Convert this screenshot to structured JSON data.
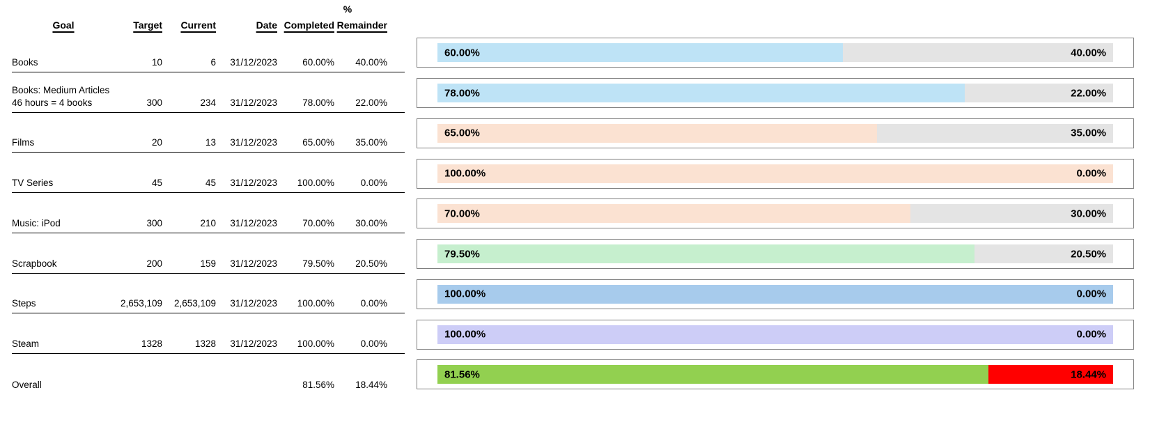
{
  "colors": {
    "light_blue": "#BEE3F6",
    "peach": "#FBE2D2",
    "light_green": "#C6EFCE",
    "medium_blue": "#A7CBEC",
    "lavender": "#CDCDF7",
    "bright_green": "#92D050",
    "red": "#FF0000",
    "remainder_gray": "#E4E4E4",
    "chart_border": "#7F7F7F"
  },
  "table": {
    "headers": {
      "percent_symbol": "%",
      "goal": "Goal",
      "target": "Target",
      "current": "Current",
      "date": "Date",
      "completed": "Completed",
      "remainder": "Remainder"
    }
  },
  "rows": [
    {
      "goal": "Books",
      "goal2": "",
      "target": "10",
      "current": "6",
      "date": "31/12/2023",
      "completed": "60.00%",
      "remainder": "40.00%",
      "completed_pct": 60,
      "fill_color": "#BEE3F6",
      "remainder_color": "#E4E4E4",
      "underline": true
    },
    {
      "goal": "Books: Medium Articles",
      "goal2": "46 hours = 4 books",
      "target": "300",
      "current": "234",
      "date": "31/12/2023",
      "completed": "78.00%",
      "remainder": "22.00%",
      "completed_pct": 78,
      "fill_color": "#BEE3F6",
      "remainder_color": "#E4E4E4",
      "underline": true
    },
    {
      "goal": "Films",
      "goal2": "",
      "target": "20",
      "current": "13",
      "date": "31/12/2023",
      "completed": "65.00%",
      "remainder": "35.00%",
      "completed_pct": 65,
      "fill_color": "#FBE2D2",
      "remainder_color": "#E4E4E4",
      "underline": true
    },
    {
      "goal": "TV Series",
      "goal2": "",
      "target": "45",
      "current": "45",
      "date": "31/12/2023",
      "completed": "100.00%",
      "remainder": "0.00%",
      "completed_pct": 100,
      "fill_color": "#FBE2D2",
      "remainder_color": "#E4E4E4",
      "underline": true
    },
    {
      "goal": "Music: iPod",
      "goal2": "",
      "target": "300",
      "current": "210",
      "date": "31/12/2023",
      "completed": "70.00%",
      "remainder": "30.00%",
      "completed_pct": 70,
      "fill_color": "#FBE2D2",
      "remainder_color": "#E4E4E4",
      "underline": true
    },
    {
      "goal": "Scrapbook",
      "goal2": "",
      "target": "200",
      "current": "159",
      "date": "31/12/2023",
      "completed": "79.50%",
      "remainder": "20.50%",
      "completed_pct": 79.5,
      "fill_color": "#C6EFCE",
      "remainder_color": "#E4E4E4",
      "underline": true
    },
    {
      "goal": "Steps",
      "goal2": "",
      "target": "2,653,109",
      "current": "2,653,109",
      "date": "31/12/2023",
      "completed": "100.00%",
      "remainder": "0.00%",
      "completed_pct": 100,
      "fill_color": "#A7CBEC",
      "remainder_color": "#E4E4E4",
      "underline": true
    },
    {
      "goal": "Steam",
      "goal2": "",
      "target": "1328",
      "current": "1328",
      "date": "31/12/2023",
      "completed": "100.00%",
      "remainder": "0.00%",
      "completed_pct": 100,
      "fill_color": "#CDCDF7",
      "remainder_color": "#E4E4E4",
      "underline": true
    },
    {
      "goal": "Overall",
      "goal2": "",
      "target": "",
      "current": "",
      "date": "",
      "completed": "81.56%",
      "remainder": "18.44%",
      "completed_pct": 81.56,
      "fill_color": "#92D050",
      "remainder_color": "#FF0000",
      "underline": false
    }
  ],
  "chart_data": {
    "type": "bar",
    "subtype": "horizontal_100pct_stacked_progress",
    "categories": [
      "Books",
      "Books: Medium Articles (46 hours = 4 books)",
      "Films",
      "TV Series",
      "Music: iPod",
      "Scrapbook",
      "Steps",
      "Steam",
      "Overall"
    ],
    "series": [
      {
        "name": "% Completed",
        "values": [
          60.0,
          78.0,
          65.0,
          100.0,
          70.0,
          79.5,
          100.0,
          100.0,
          81.56
        ]
      },
      {
        "name": "Remainder",
        "values": [
          40.0,
          22.0,
          35.0,
          0.0,
          30.0,
          20.5,
          0.0,
          0.0,
          18.44
        ]
      }
    ],
    "xlim": [
      0,
      100
    ],
    "data_labels": "percent shown inside both segments",
    "legend": "none",
    "axes": "hidden",
    "grid": false,
    "segment_colors": {
      "completed_per_category": [
        "#BEE3F6",
        "#BEE3F6",
        "#FBE2D2",
        "#FBE2D2",
        "#FBE2D2",
        "#C6EFCE",
        "#A7CBEC",
        "#CDCDF7",
        "#92D050"
      ],
      "remainder_per_category": [
        "#E4E4E4",
        "#E4E4E4",
        "#E4E4E4",
        "#E4E4E4",
        "#E4E4E4",
        "#E4E4E4",
        "#E4E4E4",
        "#E4E4E4",
        "#FF0000"
      ]
    }
  }
}
